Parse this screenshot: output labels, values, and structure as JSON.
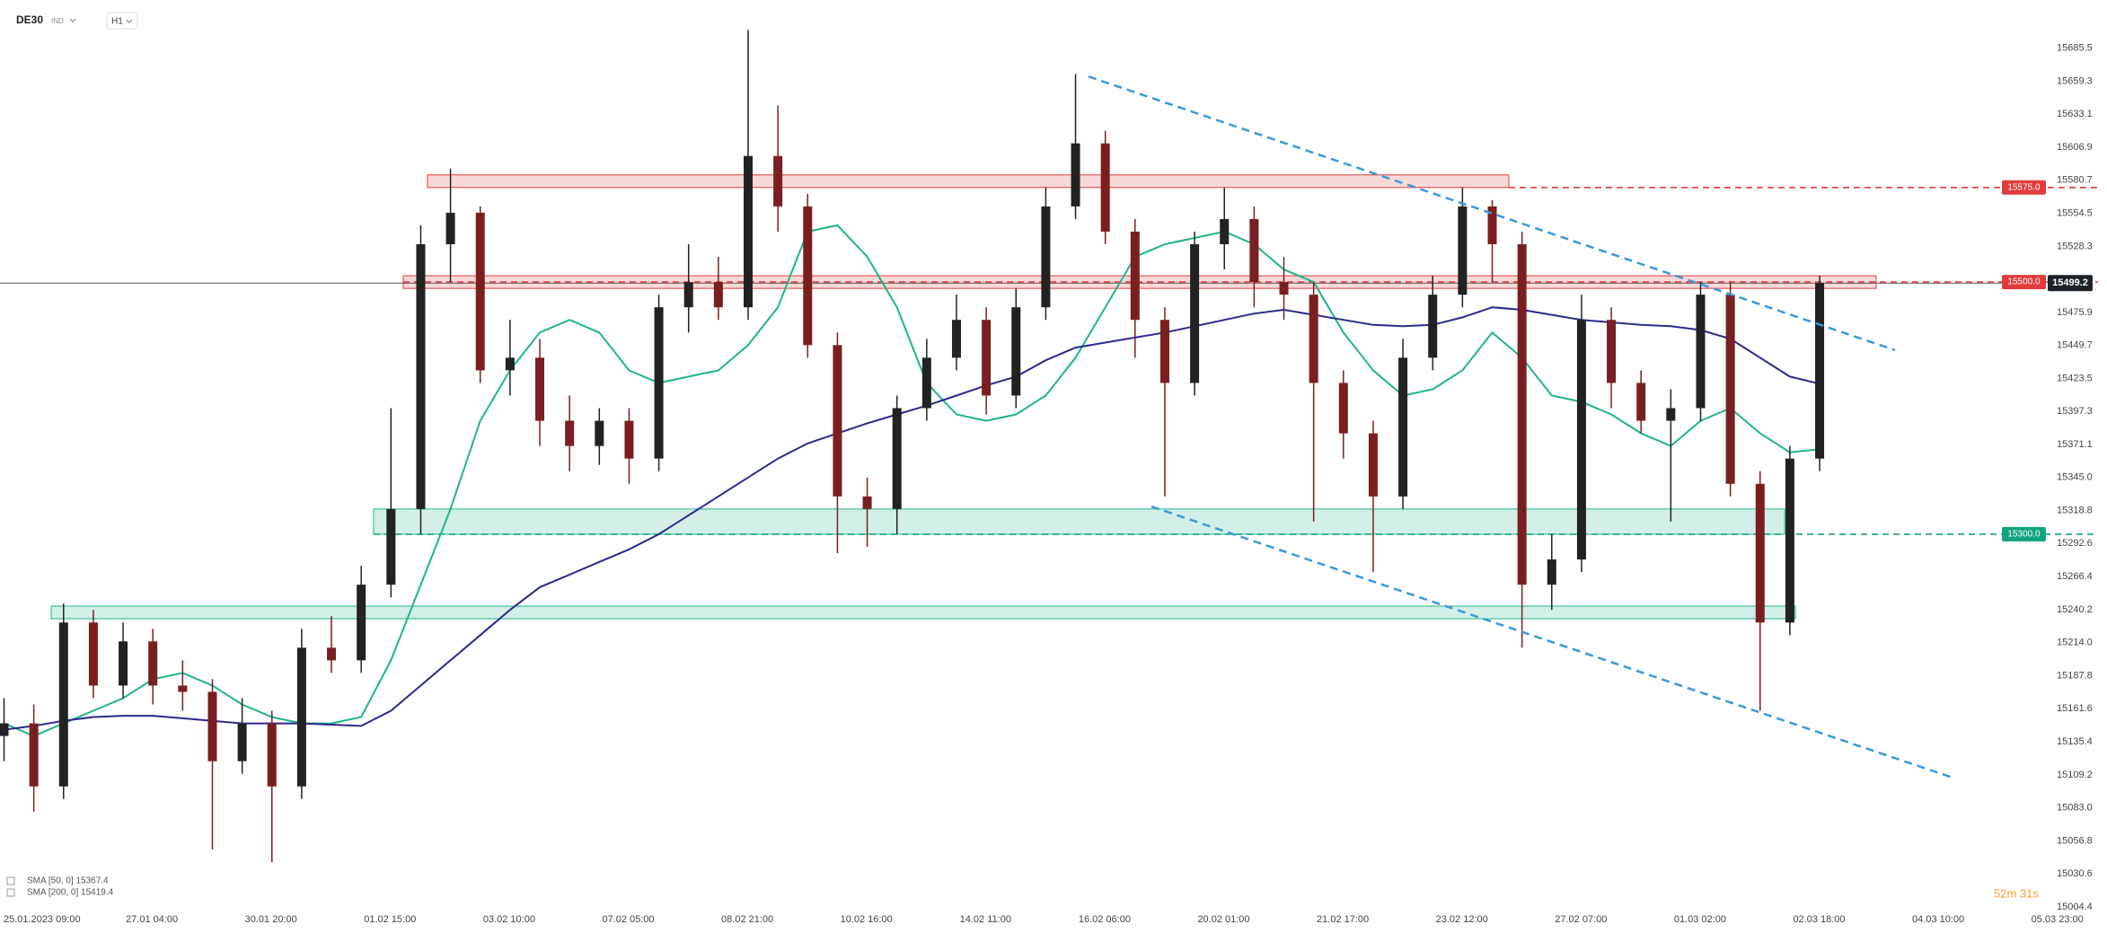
{
  "chart_data": {
    "type": "candlestick",
    "symbol": "DE30",
    "market": "IND",
    "timeframe": "H1",
    "time_labels": [
      "25.01.2023 09:00",
      "27.01 04:00",
      "30.01 20:00",
      "01.02 15:00",
      "03.02 10:00",
      "07.02 05:00",
      "08.02 21:00",
      "10.02 16:00",
      "14.02 11:00",
      "16.02 06:00",
      "20.02 01:00",
      "21.02 17:00",
      "23.02 12:00",
      "27.02 07:00",
      "01.03 02:00",
      "02.03 18:00",
      "04.03 10:00",
      "05.03 23:00"
    ],
    "up_color": "#222222",
    "down_color": "#7a1f1f",
    "open": [
      15140,
      15150,
      15100,
      15230,
      15180,
      15215,
      15180,
      15175,
      15120,
      15150,
      15100,
      15210,
      15200,
      15260,
      15320,
      15530,
      15555,
      15430,
      15440,
      15390,
      15370,
      15390,
      15360,
      15480,
      15500,
      15480,
      15600,
      15560,
      15450,
      15330,
      15320,
      15400,
      15440,
      15470,
      15410,
      15480,
      15560,
      15610,
      15540,
      15470,
      15420,
      15530,
      15550,
      15500,
      15490,
      15420,
      15380,
      15330,
      15440,
      15490,
      15560,
      15530,
      15260,
      15280,
      15470,
      15420,
      15390,
      15400,
      15490,
      15340,
      15230,
      15360
    ],
    "high": [
      15170,
      15165,
      15245,
      15240,
      15230,
      15225,
      15200,
      15185,
      15170,
      15160,
      15225,
      15235,
      15275,
      15400,
      15545,
      15590,
      15560,
      15470,
      15455,
      15410,
      15400,
      15400,
      15490,
      15530,
      15520,
      15700,
      15640,
      15570,
      15460,
      15345,
      15410,
      15455,
      15490,
      15480,
      15495,
      15575,
      15665,
      15620,
      15550,
      15480,
      15540,
      15575,
      15560,
      15520,
      15500,
      15430,
      15390,
      15455,
      15505,
      15575,
      15565,
      15540,
      15300,
      15490,
      15480,
      15430,
      15415,
      15500,
      15500,
      15350,
      15370,
      15505
    ],
    "low": [
      15120,
      15080,
      15090,
      15170,
      15170,
      15165,
      15160,
      15050,
      15110,
      15040,
      15090,
      15190,
      15190,
      15250,
      15300,
      15500,
      15420,
      15410,
      15370,
      15350,
      15355,
      15340,
      15350,
      15460,
      15470,
      15470,
      15540,
      15440,
      15285,
      15290,
      15300,
      15390,
      15430,
      15395,
      15400,
      15470,
      15550,
      15530,
      15440,
      15330,
      15410,
      15510,
      15480,
      15470,
      15310,
      15360,
      15270,
      15320,
      15430,
      15480,
      15500,
      15210,
      15240,
      15270,
      15400,
      15380,
      15310,
      15390,
      15330,
      15160,
      15220,
      15350
    ],
    "close": [
      15150,
      15100,
      15230,
      15180,
      15215,
      15180,
      15175,
      15120,
      15150,
      15100,
      15210,
      15200,
      15260,
      15320,
      15530,
      15555,
      15430,
      15440,
      15390,
      15370,
      15390,
      15360,
      15480,
      15500,
      15480,
      15600,
      15560,
      15450,
      15330,
      15320,
      15400,
      15440,
      15470,
      15410,
      15480,
      15560,
      15610,
      15540,
      15470,
      15420,
      15530,
      15550,
      15500,
      15490,
      15420,
      15380,
      15330,
      15440,
      15490,
      15560,
      15530,
      15260,
      15280,
      15470,
      15420,
      15390,
      15400,
      15490,
      15340,
      15230,
      15360,
      15499.2
    ],
    "indicators": [
      {
        "name": "SMA [50, 0] 15367.4",
        "color": "#1fb58a",
        "values": [
          15150,
          15140,
          15150,
          15160,
          15170,
          15185,
          15190,
          15180,
          15165,
          15155,
          15150,
          15150,
          15155,
          15200,
          15260,
          15320,
          15390,
          15430,
          15460,
          15470,
          15460,
          15430,
          15420,
          15425,
          15430,
          15450,
          15480,
          15540,
          15545,
          15520,
          15480,
          15420,
          15395,
          15390,
          15395,
          15410,
          15440,
          15480,
          15520,
          15530,
          15535,
          15540,
          15530,
          15510,
          15500,
          15460,
          15430,
          15410,
          15415,
          15430,
          15460,
          15440,
          15410,
          15405,
          15395,
          15380,
          15370,
          15390,
          15400,
          15380,
          15365,
          15367.4
        ]
      },
      {
        "name": "SMA [200, 0] 15419.4",
        "color": "#2b2a8c",
        "values": [
          15145,
          15148,
          15152,
          15155,
          15156,
          15156,
          15154,
          15152,
          15150,
          15150,
          15150,
          15149,
          15148,
          15160,
          15180,
          15200,
          15220,
          15240,
          15258,
          15268,
          15278,
          15288,
          15300,
          15315,
          15330,
          15345,
          15360,
          15372,
          15380,
          15388,
          15395,
          15402,
          15410,
          15418,
          15425,
          15438,
          15448,
          15452,
          15456,
          15460,
          15465,
          15470,
          15475,
          15478,
          15474,
          15470,
          15466,
          15465,
          15466,
          15472,
          15480,
          15478,
          15474,
          15470,
          15468,
          15466,
          15465,
          15462,
          15455,
          15440,
          15425,
          15419.4
        ]
      }
    ],
    "zones": [
      {
        "low": 15575,
        "high": 15585,
        "color": "#e23b3b"
      },
      {
        "low": 15495,
        "high": 15505,
        "color": "#e23b3b"
      },
      {
        "low": 15300,
        "high": 15320,
        "color": "#1fb58a"
      },
      {
        "low": 15233,
        "high": 15243,
        "color": "#1fb58a"
      }
    ],
    "levels": [
      {
        "value": 15575,
        "label": "15575.0",
        "color": "#e23b3b"
      },
      {
        "value": 15500,
        "label": "15500.0",
        "color": "#e23b3b"
      },
      {
        "value": 15300,
        "label": "15300.0",
        "color": "#10a37f"
      }
    ],
    "trendlines": [
      {
        "start": 15663,
        "end": 15446,
        "color": "#3a9ad9"
      },
      {
        "start": 15322,
        "end": 15107,
        "color": "#3a9ad9"
      }
    ],
    "current_price": 15499.2,
    "countdown": "52m 31s",
    "ylim": [
      15004.4,
      15723.7
    ],
    "yticks": [
      15685.5,
      15659.3,
      15633.1,
      15606.9,
      15580.7,
      15554.5,
      15528.3,
      15475.9,
      15449.7,
      15423.5,
      15397.3,
      15371.1,
      {
        "value": 15345,
        "label": "15345.0"
      },
      15318.8,
      15292.6,
      15266.4,
      15240.2,
      {
        "value": 15214,
        "label": "15214.0"
      },
      15187.8,
      15161.6,
      15135.4,
      15109.2,
      {
        "value": 15083,
        "label": "15083.0"
      },
      15056.8,
      15030.6,
      15004.4
    ],
    "grid": false
  }
}
